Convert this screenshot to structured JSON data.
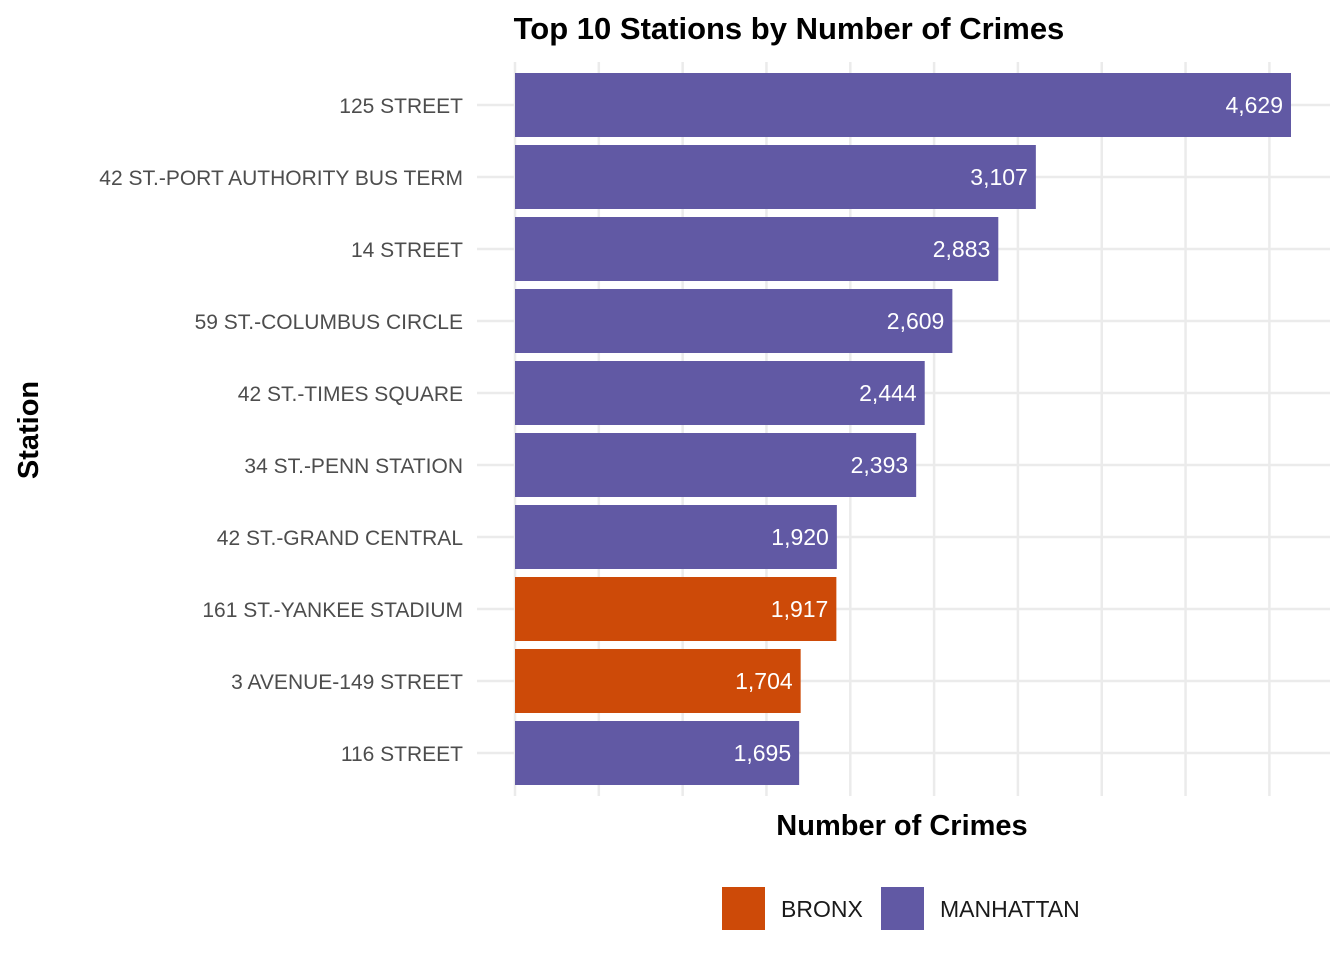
{
  "chart_data": {
    "type": "bar",
    "orientation": "horizontal",
    "title": "Top 10 Stations by Number of Crimes",
    "xlabel": "Number of Crimes",
    "ylabel": "Station",
    "xlim": [
      0,
      4800
    ],
    "grid": true,
    "categories": [
      "125 STREET",
      "42 ST.-PORT AUTHORITY BUS TERM",
      "14 STREET",
      "59 ST.-COLUMBUS CIRCLE",
      "42 ST.-TIMES SQUARE",
      "34 ST.-PENN STATION",
      "42 ST.-GRAND CENTRAL",
      "161 ST.-YANKEE STADIUM",
      "3 AVENUE-149 STREET",
      "116 STREET"
    ],
    "values": [
      4629,
      3107,
      2883,
      2609,
      2444,
      2393,
      1920,
      1917,
      1704,
      1695
    ],
    "labels": [
      "4,629",
      "3,107",
      "2,883",
      "2,609",
      "2,444",
      "2,393",
      "1,920",
      "1,917",
      "1,704",
      "1,695"
    ],
    "groups": [
      "MANHATTAN",
      "MANHATTAN",
      "MANHATTAN",
      "MANHATTAN",
      "MANHATTAN",
      "MANHATTAN",
      "MANHATTAN",
      "BRONX",
      "BRONX",
      "MANHATTAN"
    ],
    "legend": {
      "placement": "bottom",
      "entries": [
        {
          "name": "BRONX",
          "color": "#CD4A08"
        },
        {
          "name": "MANHATTAN",
          "color": "#6159A4"
        }
      ]
    }
  }
}
